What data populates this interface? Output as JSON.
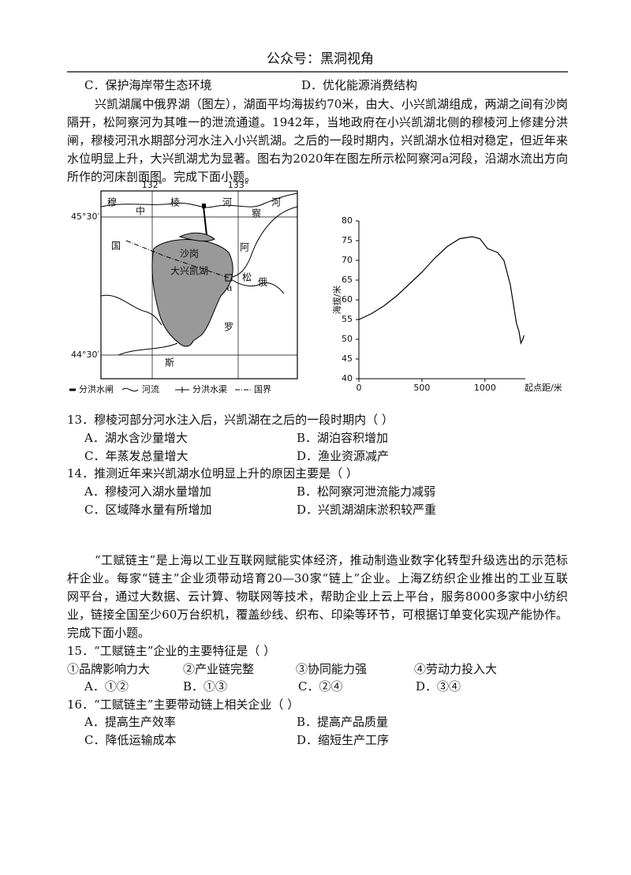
{
  "header": {
    "title": "公众号：黑洞视角"
  },
  "previous_options": [
    "C．保护海岸带生态环境",
    "D．优化能源消费结构"
  ],
  "passage1": [
    "兴凯湖属中俄界湖（图左），湖面平均海拔约70米，由大、小兴凯湖组成，两湖之间有沙岗",
    "隔开，松阿察河为其唯一的泄流通道。1942年，当地政府在小兴凯湖北侧的穆棱河上修建分洪水",
    "闸，穆棱河汛水期部分河水注入小兴凯湖。之后的一段时期内，兴凯湖水位相对稳定，但近年来",
    "水位明显上升，大兴凯湖尤为显著。图右为2020年在图左所示松阿察河a河段，沿湖水流出方向",
    "所作的河床剖面图。完成下面小题。"
  ],
  "map": {
    "longitudes": [
      "132°",
      "133°"
    ],
    "latitudes": [
      "45°30′",
      "44°30′"
    ],
    "labels": [
      "穆",
      "中",
      "棱",
      "河",
      "察",
      "河",
      "国",
      "沙岗",
      "大兴凯湖",
      "阿",
      "松",
      "a",
      "俄",
      "罗",
      "斯"
    ],
    "legend": [
      "分洪水闸",
      "河流",
      "分洪水渠",
      "国界"
    ]
  },
  "chart_data": {
    "type": "line",
    "x_label": "起点距/米",
    "y_label": "海拔/米",
    "color": "#000000",
    "x": [
      0,
      100,
      200,
      300,
      400,
      500,
      600,
      700,
      800,
      900,
      960,
      1020,
      1100,
      1150,
      1200,
      1230,
      1250,
      1270,
      1285,
      1300,
      1310
    ],
    "values": [
      55,
      56.5,
      58.5,
      61,
      64,
      67,
      70.5,
      73.5,
      75.5,
      76,
      75.5,
      73,
      72,
      70,
      64,
      58,
      54,
      52,
      49,
      50,
      51
    ],
    "xlim": [
      0,
      1320
    ],
    "ylim": [
      40,
      80
    ],
    "xticks": [
      0,
      500,
      1000
    ],
    "yticks": [
      40,
      45,
      50,
      55,
      60,
      65,
      70,
      75,
      80
    ]
  },
  "questions1": [
    {
      "stem": "13．穆棱河部分河水注入后，兴凯湖在之后的一段时期内（ ）",
      "options": [
        "A．湖水含沙量增大",
        "B．湖泊容积增加",
        "C．年蒸发总量增大",
        "D．渔业资源减产"
      ]
    },
    {
      "stem": "14．推测近年来兴凯湖水位明显上升的原因主要是（ ）",
      "options": [
        "A．穆棱河入湖水量增加",
        "B．松阿察河泄流能力减弱",
        "C．区域降水量有所增加",
        "D．兴凯湖湖床淤积较严重"
      ]
    }
  ],
  "passage2": [
    "“工赋链主”是上海以工业互联网赋能实体经济，推动制造业数字化转型升级选出的示范标",
    "杆企业。每家“链主”企业须带动培育20—30家“链上”企业。上海Z纺织企业推出的工业互联",
    "网平台，通过大数据、云计算、物联网等技术，帮助企业上云上平台，服务8000多家中小纺织企",
    "业，链接全国至少60万台织机，覆盖纱线、织布、印染等环节，可根据订单变化实现产能协作。",
    "完成下面小题。"
  ],
  "question15": {
    "stem": "15．“工赋链主”企业的主要特征是（ ）",
    "statements": [
      "①品牌影响力大",
      "②产业链完整",
      "③协同能力强",
      "④劳动力投入大"
    ],
    "options": [
      "A．①②",
      "B．①③",
      "C．②④",
      "D．③④"
    ]
  },
  "question16": {
    "stem": "16．“工赋链主”主要带动链上相关企业（ ）",
    "options": [
      "A．提高生产效率",
      "B．提高产品质量",
      "C．降低运输成本",
      "D．缩短生产工序"
    ]
  }
}
